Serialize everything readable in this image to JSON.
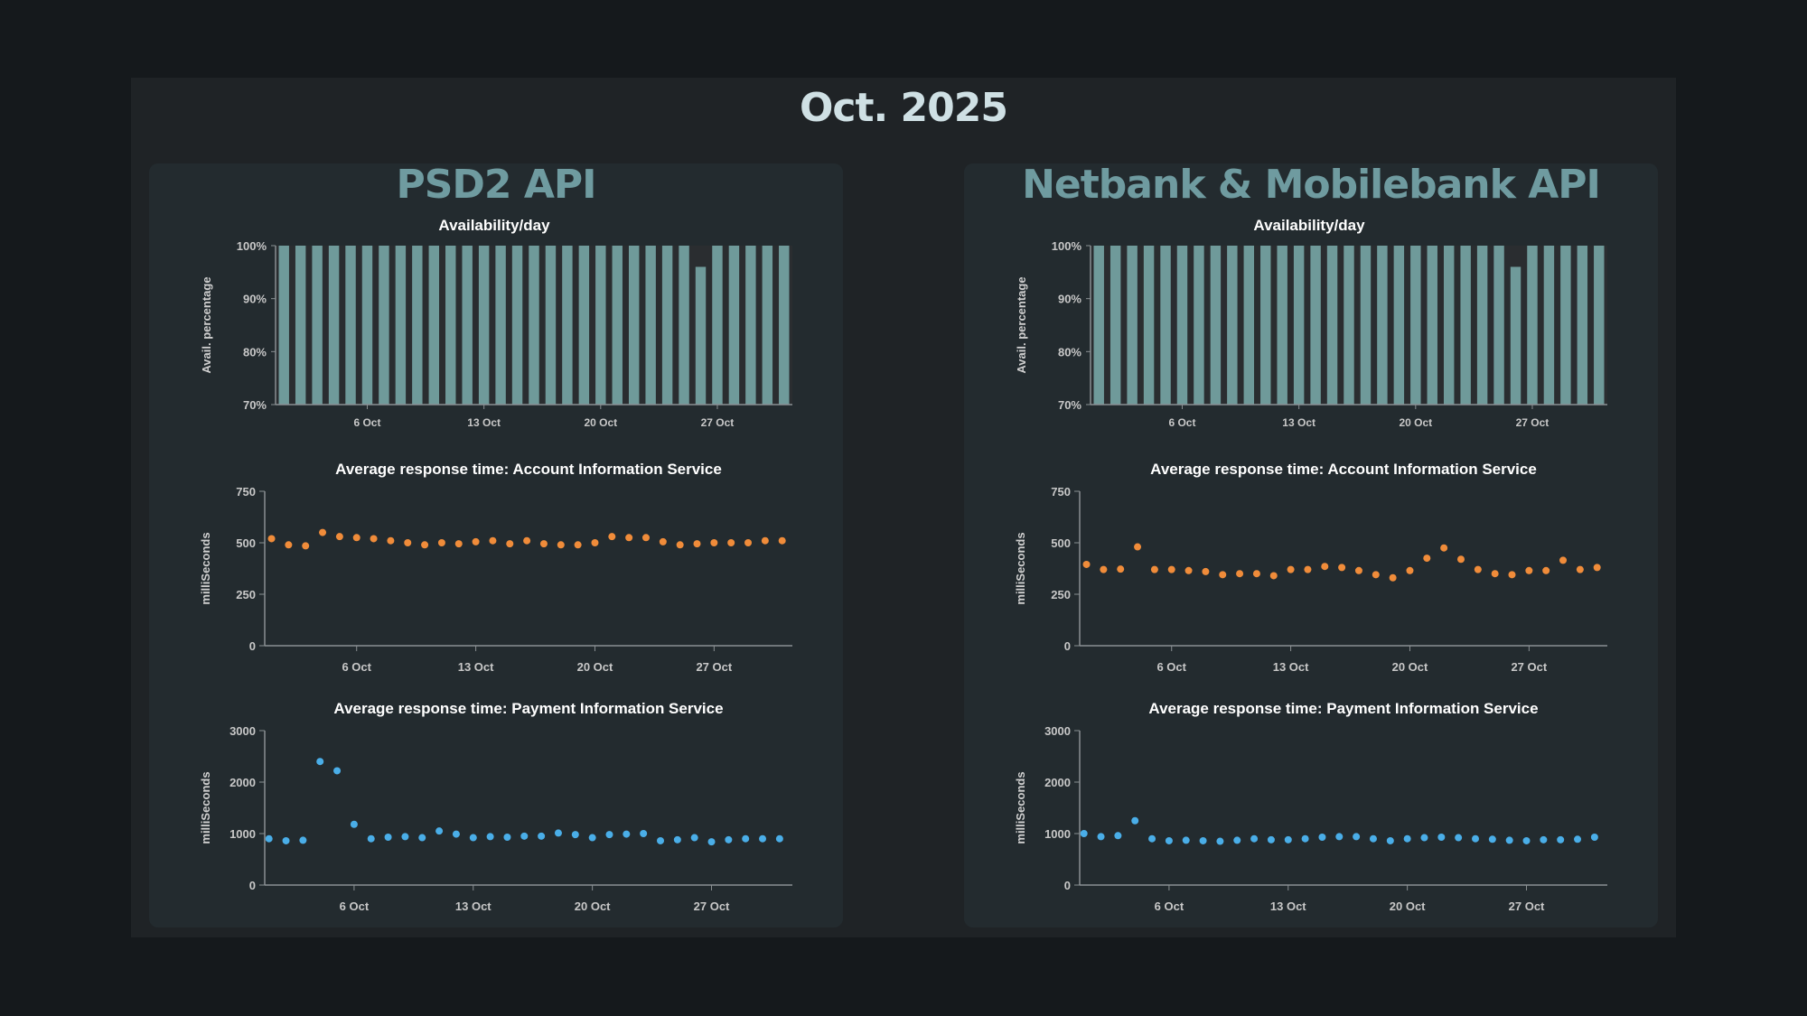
{
  "page": {
    "title": "Oct. 2025"
  },
  "colors": {
    "bar": "#6f9a9a",
    "ais": "#f08c3a",
    "pis": "#4aaee8",
    "axis": "#8a9093"
  },
  "panels": [
    {
      "title": "PSD2 API",
      "charts": [
        {
          "type": "bar",
          "title": "Availability/day",
          "ylabel": "Avail. percentage",
          "ylim": [
            70,
            100
          ],
          "yticks": [
            70,
            80,
            90,
            100
          ],
          "ytick_labels": [
            "70%",
            "80%",
            "90%",
            "100%"
          ],
          "xlim": [
            0.5,
            31.5
          ],
          "xticks": [
            6,
            13,
            20,
            27
          ],
          "xtick_labels": [
            "6 Oct",
            "13 Oct",
            "20 Oct",
            "27 Oct"
          ],
          "x": [
            1,
            2,
            3,
            4,
            5,
            6,
            7,
            8,
            9,
            10,
            11,
            12,
            13,
            14,
            15,
            16,
            17,
            18,
            19,
            20,
            21,
            22,
            23,
            24,
            25,
            26,
            27,
            28,
            29,
            30,
            31
          ],
          "values": [
            100,
            100,
            100,
            100,
            100,
            100,
            100,
            100,
            100,
            100,
            100,
            100,
            100,
            100,
            100,
            100,
            100,
            100,
            100,
            100,
            100,
            100,
            100,
            100,
            100,
            96,
            100,
            100,
            100,
            100,
            100
          ]
        },
        {
          "type": "scatter",
          "title": "Average response time: Account Information Service",
          "ylabel": "milliSeconds",
          "ylim": [
            0,
            750
          ],
          "yticks": [
            0,
            250,
            500,
            750
          ],
          "ytick_labels": [
            "0",
            "250",
            "500",
            "750"
          ],
          "xlim": [
            0.6,
            31.6
          ],
          "xticks": [
            6,
            13,
            20,
            27
          ],
          "xtick_labels": [
            "6 Oct",
            "13 Oct",
            "20 Oct",
            "27 Oct"
          ],
          "x": [
            1,
            2,
            3,
            4,
            5,
            6,
            7,
            8,
            9,
            10,
            11,
            12,
            13,
            14,
            15,
            16,
            17,
            18,
            19,
            20,
            21,
            22,
            23,
            24,
            25,
            26,
            27,
            28,
            29,
            30,
            31
          ],
          "values": [
            520,
            490,
            485,
            550,
            530,
            525,
            520,
            510,
            500,
            490,
            500,
            495,
            505,
            510,
            495,
            510,
            495,
            490,
            490,
            500,
            530,
            525,
            525,
            505,
            490,
            495,
            500,
            500,
            500,
            510,
            510
          ],
          "color": "ais"
        },
        {
          "type": "scatter",
          "title": "Average response time: Payment Information Service",
          "ylabel": "milliSeconds",
          "ylim": [
            0,
            3000
          ],
          "yticks": [
            0,
            1000,
            2000,
            3000
          ],
          "ytick_labels": [
            "0",
            "1000",
            "2000",
            "3000"
          ],
          "xlim": [
            0.75,
            31.75
          ],
          "xticks": [
            6,
            13,
            20,
            27
          ],
          "xtick_labels": [
            "6 Oct",
            "13 Oct",
            "20 Oct",
            "27 Oct"
          ],
          "x": [
            1,
            2,
            3,
            4,
            5,
            6,
            7,
            8,
            9,
            10,
            11,
            12,
            13,
            14,
            15,
            16,
            17,
            18,
            19,
            20,
            21,
            22,
            23,
            24,
            25,
            26,
            27,
            28,
            29,
            30,
            31
          ],
          "values": [
            900,
            860,
            870,
            2400,
            2220,
            1180,
            900,
            930,
            940,
            920,
            1050,
            990,
            920,
            940,
            930,
            950,
            950,
            1010,
            980,
            920,
            980,
            990,
            1000,
            860,
            880,
            920,
            840,
            880,
            900,
            900,
            900
          ],
          "color": "pis"
        }
      ]
    },
    {
      "title": "Netbank & Mobilebank API",
      "charts": [
        {
          "type": "bar",
          "title": "Availability/day",
          "ylabel": "Avail. percentage",
          "ylim": [
            70,
            100
          ],
          "yticks": [
            70,
            80,
            90,
            100
          ],
          "ytick_labels": [
            "70%",
            "80%",
            "90%",
            "100%"
          ],
          "xlim": [
            0.5,
            31.5
          ],
          "xticks": [
            6,
            13,
            20,
            27
          ],
          "xtick_labels": [
            "6 Oct",
            "13 Oct",
            "20 Oct",
            "27 Oct"
          ],
          "x": [
            1,
            2,
            3,
            4,
            5,
            6,
            7,
            8,
            9,
            10,
            11,
            12,
            13,
            14,
            15,
            16,
            17,
            18,
            19,
            20,
            21,
            22,
            23,
            24,
            25,
            26,
            27,
            28,
            29,
            30,
            31
          ],
          "values": [
            100,
            100,
            100,
            100,
            100,
            100,
            100,
            100,
            100,
            100,
            100,
            100,
            100,
            100,
            100,
            100,
            100,
            100,
            100,
            100,
            100,
            100,
            100,
            100,
            100,
            96,
            100,
            100,
            100,
            100,
            100
          ]
        },
        {
          "type": "scatter",
          "title": "Average response time: Account Information Service",
          "ylabel": "milliSeconds",
          "ylim": [
            0,
            750
          ],
          "yticks": [
            0,
            250,
            500,
            750
          ],
          "ytick_labels": [
            "0",
            "250",
            "500",
            "750"
          ],
          "xlim": [
            0.6,
            31.6
          ],
          "xticks": [
            6,
            13,
            20,
            27
          ],
          "xtick_labels": [
            "6 Oct",
            "13 Oct",
            "20 Oct",
            "27 Oct"
          ],
          "x": [
            1,
            2,
            3,
            4,
            5,
            6,
            7,
            8,
            9,
            10,
            11,
            12,
            13,
            14,
            15,
            16,
            17,
            18,
            19,
            20,
            21,
            22,
            23,
            24,
            25,
            26,
            27,
            28,
            29,
            30,
            31
          ],
          "values": [
            395,
            370,
            372,
            480,
            370,
            370,
            365,
            360,
            345,
            350,
            350,
            340,
            370,
            370,
            385,
            380,
            365,
            345,
            330,
            365,
            425,
            475,
            420,
            370,
            350,
            345,
            365,
            365,
            415,
            370,
            380
          ],
          "color": "ais"
        },
        {
          "type": "scatter",
          "title": "Average response time: Payment Information Service",
          "ylabel": "milliSeconds",
          "ylim": [
            0,
            3000
          ],
          "yticks": [
            0,
            1000,
            2000,
            3000
          ],
          "ytick_labels": [
            "0",
            "1000",
            "2000",
            "3000"
          ],
          "xlim": [
            0.75,
            31.75
          ],
          "xticks": [
            6,
            13,
            20,
            27
          ],
          "xtick_labels": [
            "6 Oct",
            "13 Oct",
            "20 Oct",
            "27 Oct"
          ],
          "x": [
            1,
            2,
            3,
            4,
            5,
            6,
            7,
            8,
            9,
            10,
            11,
            12,
            13,
            14,
            15,
            16,
            17,
            18,
            19,
            20,
            21,
            22,
            23,
            24,
            25,
            26,
            27,
            28,
            29,
            30,
            31
          ],
          "values": [
            1000,
            940,
            960,
            1250,
            900,
            860,
            870,
            860,
            850,
            870,
            900,
            880,
            880,
            900,
            930,
            940,
            940,
            900,
            860,
            900,
            920,
            930,
            920,
            900,
            890,
            870,
            860,
            880,
            880,
            890,
            930
          ],
          "color": "pis"
        }
      ]
    }
  ]
}
